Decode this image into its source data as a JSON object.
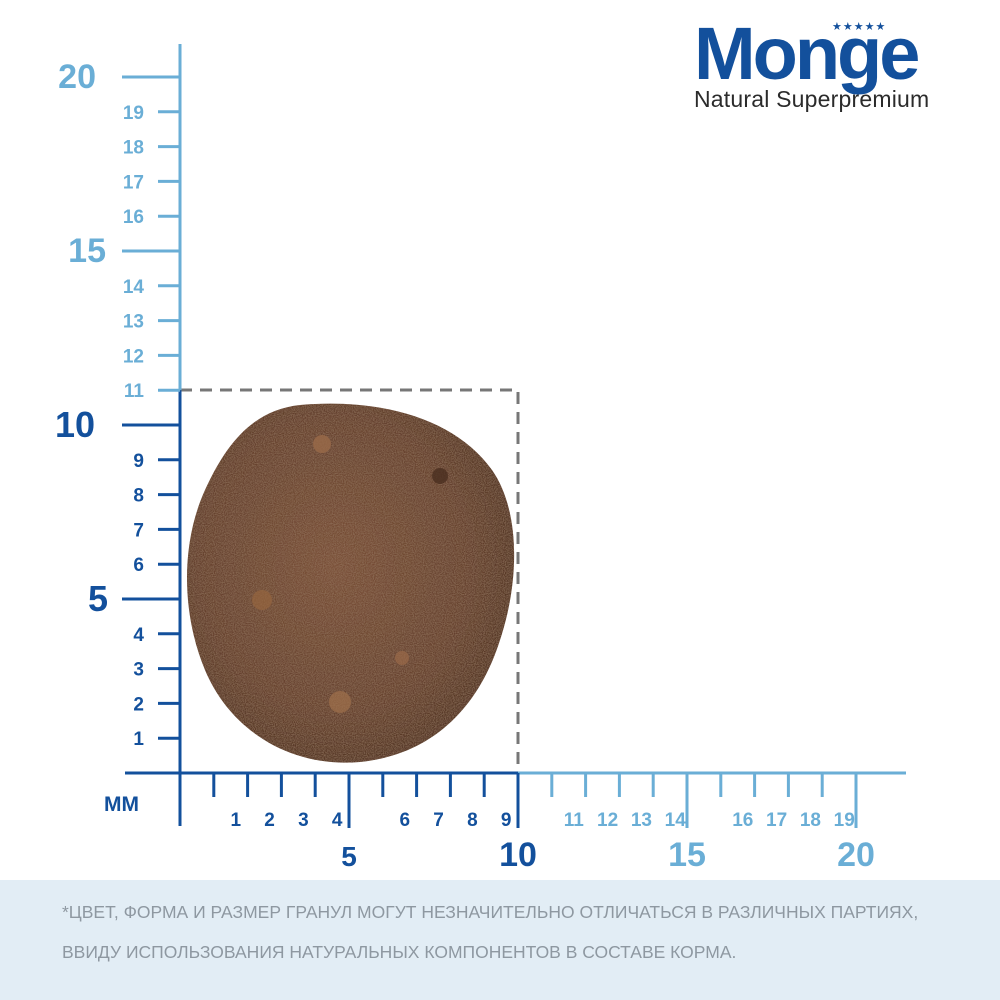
{
  "brand": {
    "name": "Monge",
    "stars": "★★★★★",
    "tagline": "Natural Superpremium"
  },
  "unit_label": "мм",
  "ruler": {
    "y_major": [
      "20",
      "15",
      "10",
      "5"
    ],
    "y_minor": [
      "19",
      "18",
      "17",
      "16",
      "14",
      "13",
      "12",
      "11",
      "9",
      "8",
      "7",
      "6",
      "4",
      "3",
      "2",
      "1"
    ],
    "x_major": [
      "5",
      "10",
      "15",
      "20"
    ],
    "x_minor": [
      "1",
      "2",
      "3",
      "4",
      "6",
      "7",
      "8",
      "9",
      "11",
      "12",
      "13",
      "14",
      "16",
      "17",
      "18",
      "19"
    ]
  },
  "kibble_size_mm": {
    "width": 10,
    "height": 11
  },
  "colors": {
    "dark_blue": "#13509c",
    "light_blue": "#6aaed6",
    "kibble": "#6a4330",
    "note_bg": "#e2edf5",
    "note_text": "#8e98a1"
  },
  "disclaimer": {
    "line1": "*ЦВЕТ, ФОРМА И РАЗМЕР ГРАНУЛ МОГУТ НЕЗНАЧИТЕЛЬНО ОТЛИЧАТЬСЯ В РАЗЛИЧНЫХ ПАРТИЯХ,",
    "line2": "ВВИДУ ИСПОЛЬЗОВАНИЯ НАТУРАЛЬНЫХ КОМПОНЕНТОВ В СОСТАВЕ КОРМА."
  }
}
